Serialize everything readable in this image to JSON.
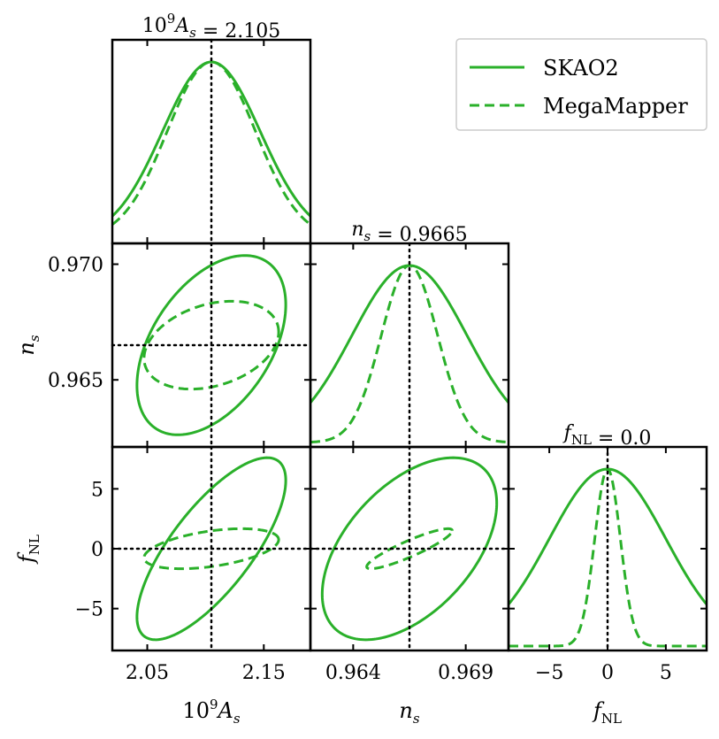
{
  "chart_data": {
    "type": "triangle-corner",
    "colors": {
      "series": "#2ab02a"
    },
    "parameters": [
      {
        "key": "As",
        "label": "10^9 A_s",
        "label_base": "10",
        "label_sup": "9",
        "label_var": "A",
        "label_sub": "s",
        "fiducial": 2.105,
        "range": [
          2.02,
          2.19
        ],
        "ticks": [
          2.05,
          2.15
        ],
        "tick_labels": [
          "2.05",
          "2.15"
        ],
        "title": "10^9 A_s = 2.105",
        "title_value": "= 2.105"
      },
      {
        "key": "ns",
        "label": "n_s",
        "label_var": "n",
        "label_sub": "s",
        "fiducial": 0.9665,
        "range": [
          0.9621,
          0.9709
        ],
        "ticks": [
          0.964,
          0.969
        ],
        "tick_labels": [
          "0.964",
          "0.969"
        ],
        "y_ticks": [
          0.965,
          0.97
        ],
        "y_tick_labels": [
          "0.965",
          "0.970"
        ],
        "title": "n_s = 0.9665",
        "title_value": "= 0.9665"
      },
      {
        "key": "fNL",
        "label": "f_NL",
        "label_var": "f",
        "label_sub": "NL",
        "fiducial": 0.0,
        "range": [
          -8.5,
          8.5
        ],
        "ticks": [
          -5,
          0,
          5
        ],
        "tick_labels": [
          "−5",
          "0",
          "5"
        ],
        "y_ticks": [
          -5,
          0,
          5
        ],
        "y_tick_labels": [
          "−5",
          "0",
          "5"
        ],
        "title": "f_NL = 0.0",
        "title_value": "= 0.0"
      }
    ],
    "series": [
      {
        "name": "SKAO2",
        "linestyle": "solid",
        "sigma": {
          "As": 0.042,
          "ns": 0.00255,
          "fNL": 5.0
        },
        "correlation": {
          "As-ns": 0.45,
          "As-fNL": 0.75,
          "ns-fNL": 0.5
        }
      },
      {
        "name": "MegaMapper",
        "linestyle": "dashed",
        "sigma": {
          "As": 0.038,
          "ns": 0.00125,
          "fNL": 1.1
        },
        "correlation": {
          "As-ns": 0.3,
          "As-fNL": 0.45,
          "ns-fNL": 0.9
        }
      }
    ],
    "legend": {
      "placement": "top-right",
      "entries": [
        "SKAO2",
        "MegaMapper"
      ]
    }
  }
}
